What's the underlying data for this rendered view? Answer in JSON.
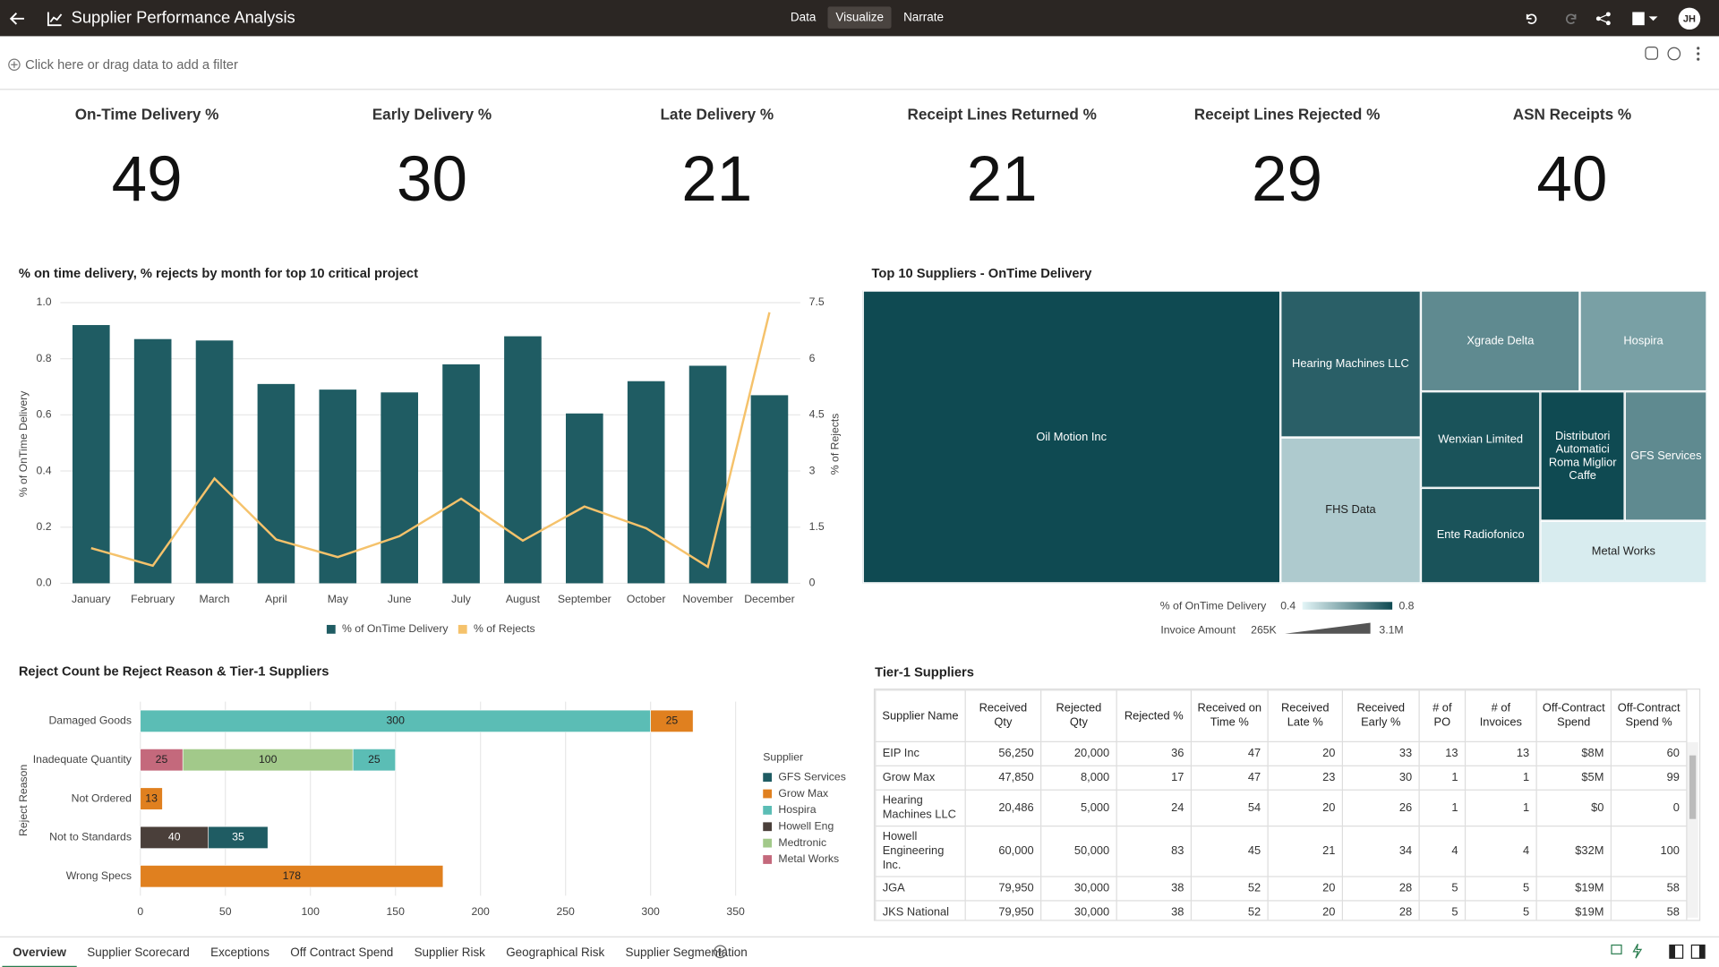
{
  "header": {
    "title": "Supplier Performance Analysis",
    "nav": [
      "Data",
      "Visualize",
      "Narrate"
    ],
    "user": "JH"
  },
  "filter_bar": {
    "placeholder": "Click here or drag data to add a filter"
  },
  "kpis": [
    {
      "label": "On-Time Delivery %",
      "value": 49
    },
    {
      "label": "Early Delivery %",
      "value": 30
    },
    {
      "label": "Late Delivery %",
      "value": 21
    },
    {
      "label": "Receipt Lines Returned %",
      "value": 21
    },
    {
      "label": "Receipt Lines Rejected %",
      "value": 29
    },
    {
      "label": "ASN Receipts %",
      "value": 40
    }
  ],
  "chart_data": [
    {
      "type": "combo",
      "title": "% on time delivery, % rejects by month for top 10 critical project",
      "categories": [
        "January",
        "February",
        "March",
        "April",
        "May",
        "June",
        "July",
        "August",
        "September",
        "October",
        "November",
        "December"
      ],
      "series": [
        {
          "name": "% of OnTime Delivery",
          "type": "bar",
          "color": "#1f5c63",
          "values": [
            0.92,
            0.87,
            0.865,
            0.71,
            0.69,
            0.68,
            0.78,
            0.88,
            0.605,
            0.72,
            0.775,
            0.67
          ]
        },
        {
          "name": "% of Rejects",
          "type": "line",
          "axis": "y2",
          "color": "#f5c26b",
          "values": [
            0.94,
            0.47,
            2.8,
            1.17,
            0.7,
            1.26,
            2.26,
            1.14,
            2.05,
            1.47,
            0.44,
            7.24
          ]
        }
      ],
      "y_label": "% of OnTime Delivery",
      "y2_label": "% of Rejects",
      "ylim": [
        0,
        1
      ],
      "yticks": [
        {
          "value": 0,
          "label": "0.0"
        },
        0.2,
        0.4,
        0.6,
        0.8,
        {
          "value": 1,
          "label": "1.0"
        }
      ],
      "y2lim": [
        0,
        7.5
      ],
      "y2ticks": [
        0,
        1.5,
        3,
        4.5,
        6,
        7.5
      ],
      "grid": true
    },
    {
      "type": "treemap",
      "title": "Top 10 Suppliers - OnTime Delivery",
      "categories": [
        "Oil Motion Inc",
        "Hearing Machines LLC",
        "FHS Data",
        "Xgrade Delta",
        "Hospira",
        "Wenxian Limited",
        "Ente Radiofonico",
        "Distributori Automatici Roma Miglior Caffe",
        "GFS Services",
        "Metal Works"
      ],
      "values": [
        3100000,
        525000,
        522000,
        405000,
        324000,
        292000,
        289000,
        280000,
        269000,
        265000
      ],
      "color_values": [
        0.8,
        0.75,
        0.5,
        0.65,
        0.6,
        0.78,
        0.78,
        0.8,
        0.65,
        0.42
      ],
      "color_label": "% of OnTime Delivery",
      "color_ticks": [
        0.4,
        0.8
      ],
      "color_range": [
        "#e3f5f7",
        "#0f4a52"
      ],
      "size_label": "Invoice Amount",
      "size_ticks": [
        {
          "value": 265000,
          "label": "265K"
        },
        {
          "value": 3100000,
          "label": "3.1M"
        }
      ]
    },
    {
      "type": "bar",
      "orientation": "horizontal",
      "stacked": true,
      "title": "Reject Count be Reject Reason & Tier-1 Suppliers",
      "categories": [
        "Damaged Goods",
        "Inadequate Quantity",
        "Not Ordered",
        "Not to Standards",
        "Wrong Specs"
      ],
      "y_label": "Reject Reason",
      "legend_title": "Supplier",
      "series": [
        {
          "name": "GFS Services",
          "color": "#1f5c63",
          "values": [
            null,
            null,
            null,
            35,
            null
          ]
        },
        {
          "name": "Grow Max",
          "color": "#e0801f",
          "values": [
            25,
            null,
            13,
            null,
            178
          ]
        },
        {
          "name": "Hospira",
          "color": "#5bbdb5",
          "values": [
            300,
            25,
            null,
            null,
            null
          ]
        },
        {
          "name": "Howell Eng",
          "color": "#4a3f3a",
          "values": [
            null,
            null,
            null,
            40,
            null
          ]
        },
        {
          "name": "Medtronic",
          "color": "#a2c98a",
          "values": [
            null,
            100,
            null,
            null,
            null
          ]
        },
        {
          "name": "Metal Works",
          "color": "#c4697c",
          "values": [
            null,
            25,
            null,
            null,
            null
          ]
        }
      ],
      "xlim": [
        0,
        350
      ],
      "xticks": [
        0,
        50,
        100,
        150,
        200,
        250,
        300,
        350
      ],
      "grid": true
    }
  ],
  "table": {
    "title": "Tier-1 Suppliers",
    "columns": [
      "Supplier Name",
      "Received Qty",
      "Rejected Qty",
      "Rejected %",
      "Received on Time %",
      "Received Late %",
      "Received Early %",
      "# of PO",
      "# of Invoices",
      "Off-Contract Spend",
      "Off-Contract Spend %"
    ],
    "rows": [
      [
        "EIP Inc",
        "56,250",
        "20,000",
        "36",
        "47",
        "20",
        "33",
        "13",
        "13",
        "$8M",
        "60"
      ],
      [
        "Grow Max",
        "47,850",
        "8,000",
        "17",
        "47",
        "23",
        "30",
        "1",
        "1",
        "$5M",
        "99"
      ],
      [
        "Hearing Machines LLC",
        "20,486",
        "5,000",
        "24",
        "54",
        "20",
        "26",
        "1",
        "1",
        "$0",
        "0"
      ],
      [
        "Howell Engineering Inc.",
        "60,000",
        "50,000",
        "83",
        "45",
        "21",
        "34",
        "4",
        "4",
        "$32M",
        "100"
      ],
      [
        "JGA",
        "79,950",
        "30,000",
        "38",
        "52",
        "20",
        "28",
        "5",
        "5",
        "$19M",
        "58"
      ],
      [
        "JKS National",
        "79,950",
        "30,000",
        "38",
        "52",
        "20",
        "28",
        "5",
        "5",
        "$19M",
        "58"
      ]
    ]
  },
  "tabs": [
    "Overview",
    "Supplier Scorecard",
    "Exceptions",
    "Off Contract Spend",
    "Supplier Risk",
    "Geographical Risk",
    "Supplier Segmentation"
  ]
}
